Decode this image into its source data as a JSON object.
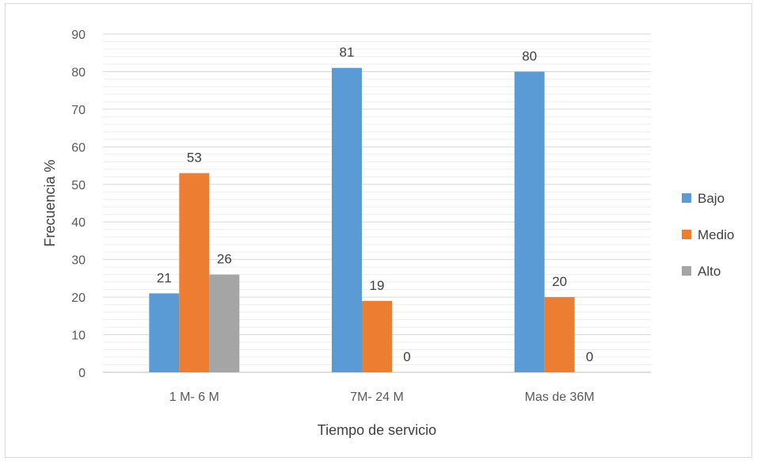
{
  "chart_data": {
    "type": "bar",
    "title": "",
    "xlabel": "Tiempo de servicio",
    "ylabel": "Frecuencia %",
    "categories": [
      "1 M- 6 M",
      "7M- 24 M",
      "Mas de 36M"
    ],
    "series": [
      {
        "name": "Bajo",
        "values": [
          21,
          81,
          80
        ],
        "color": "#5b9bd5"
      },
      {
        "name": "Medio",
        "values": [
          53,
          19,
          20
        ],
        "color": "#ed7d31"
      },
      {
        "name": "Alto",
        "values": [
          26,
          0,
          0
        ],
        "color": "#a5a5a5"
      }
    ],
    "ylim": [
      0,
      90
    ],
    "yticks": [
      0,
      10,
      20,
      30,
      40,
      50,
      60,
      70,
      80,
      90
    ],
    "grid": true,
    "legend_position": "right"
  }
}
